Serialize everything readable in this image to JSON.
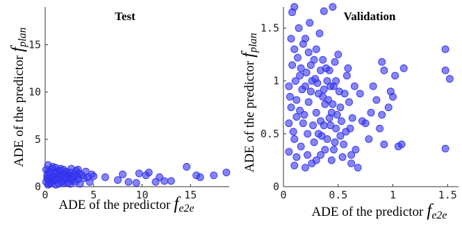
{
  "chart_data": [
    {
      "type": "scatter",
      "title": "Test",
      "xlabel": {
        "text": "ADE of the predictor",
        "symbol": "f",
        "subscript": "e2e"
      },
      "ylabel": {
        "text": "ADE of the predictor",
        "symbol": "f",
        "subscript": "plan"
      },
      "xlim": [
        0,
        19
      ],
      "ylim": [
        0,
        19
      ],
      "xticks": [
        "0",
        "5",
        "10",
        "15"
      ],
      "xtick_values": [
        0,
        5,
        10,
        15
      ],
      "yticks": [
        "0",
        "5",
        "10",
        "15"
      ],
      "ytick_values": [
        0,
        5,
        10,
        15
      ],
      "marker_color": "#3333ee",
      "points": [
        [
          0.1,
          0.5
        ],
        [
          0.2,
          1.2
        ],
        [
          0.3,
          2.3
        ],
        [
          0.1,
          1.8
        ],
        [
          0.4,
          0.9
        ],
        [
          0.5,
          1.5
        ],
        [
          0.6,
          0.4
        ],
        [
          0.7,
          1.9
        ],
        [
          0.8,
          1.1
        ],
        [
          0.9,
          0.6
        ],
        [
          1.0,
          1.4
        ],
        [
          1.1,
          2.0
        ],
        [
          1.2,
          0.8
        ],
        [
          1.3,
          1.2
        ],
        [
          1.4,
          0.3
        ],
        [
          1.5,
          1.7
        ],
        [
          1.6,
          1.0
        ],
        [
          1.7,
          0.5
        ],
        [
          1.8,
          1.3
        ],
        [
          1.9,
          1.8
        ],
        [
          2.0,
          0.7
        ],
        [
          2.1,
          1.1
        ],
        [
          2.2,
          1.6
        ],
        [
          2.3,
          0.4
        ],
        [
          2.4,
          1.2
        ],
        [
          2.5,
          0.9
        ],
        [
          2.6,
          1.5
        ],
        [
          2.7,
          1.9
        ],
        [
          2.8,
          0.6
        ],
        [
          2.9,
          1.0
        ],
        [
          3.0,
          1.3
        ],
        [
          3.1,
          0.5
        ],
        [
          3.2,
          1.7
        ],
        [
          3.3,
          1.1
        ],
        [
          3.4,
          0.8
        ],
        [
          3.5,
          1.4
        ],
        [
          3.6,
          0.3
        ],
        [
          3.8,
          1.2
        ],
        [
          4.0,
          0.9
        ],
        [
          4.2,
          1.6
        ],
        [
          4.4,
          1.0
        ],
        [
          4.6,
          0.5
        ],
        [
          4.8,
          1.3
        ],
        [
          5.0,
          1.1
        ],
        [
          0.3,
          0.2
        ],
        [
          0.6,
          1.0
        ],
        [
          1.0,
          0.7
        ],
        [
          1.5,
          1.2
        ],
        [
          2.0,
          1.4
        ],
        [
          2.5,
          1.2
        ],
        [
          0.2,
          0.9
        ],
        [
          0.5,
          0.3
        ],
        [
          1.2,
          1.6
        ],
        [
          1.9,
          0.4
        ],
        [
          2.6,
          0.3
        ],
        [
          3.4,
          1.8
        ],
        [
          0.8,
          2.1
        ],
        [
          1.6,
          1.9
        ],
        [
          0.4,
          1.6
        ],
        [
          1.1,
          0.2
        ],
        [
          6.2,
          1.0
        ],
        [
          7.5,
          0.7
        ],
        [
          8.0,
          1.3
        ],
        [
          8.6,
          0.5
        ],
        [
          9.4,
          0.4
        ],
        [
          9.7,
          1.4
        ],
        [
          10.4,
          1.2
        ],
        [
          10.7,
          1.5
        ],
        [
          11.4,
          0.5
        ],
        [
          11.8,
          1.0
        ],
        [
          12.3,
          0.6
        ],
        [
          13.0,
          0.6
        ],
        [
          14.6,
          2.1
        ],
        [
          15.6,
          1.2
        ],
        [
          16.0,
          1.0
        ],
        [
          17.4,
          1.2
        ],
        [
          18.7,
          1.5
        ]
      ]
    },
    {
      "type": "scatter",
      "title": "Validation",
      "xlabel": {
        "text": "ADE of the predictor",
        "symbol": "f",
        "subscript": "e2e"
      },
      "ylabel": {
        "text": "ADE of the predictor",
        "symbol": "f",
        "subscript": "plan"
      },
      "xlim": [
        0,
        1.6
      ],
      "ylim": [
        0,
        1.7
      ],
      "xticks": [
        "0",
        "0.5",
        "1",
        "1.5"
      ],
      "xtick_values": [
        0,
        0.5,
        1,
        1.5
      ],
      "yticks": [
        "0",
        "0.5",
        "1",
        "1.5"
      ],
      "ytick_values": [
        0,
        0.5,
        1,
        1.5
      ],
      "marker_color": "#3333ee",
      "points": [
        [
          0.05,
          0.95
        ],
        [
          0.08,
          1.65
        ],
        [
          0.1,
          1.3
        ],
        [
          0.12,
          0.82
        ],
        [
          0.15,
          1.05
        ],
        [
          0.1,
          0.45
        ],
        [
          0.18,
          0.6
        ],
        [
          0.2,
          1.4
        ],
        [
          0.22,
          0.3
        ],
        [
          0.25,
          0.9
        ],
        [
          0.28,
          1.2
        ],
        [
          0.3,
          0.7
        ],
        [
          0.32,
          0.5
        ],
        [
          0.34,
          1.1
        ],
        [
          0.36,
          0.85
        ],
        [
          0.38,
          0.35
        ],
        [
          0.4,
          1.0
        ],
        [
          0.42,
          0.65
        ],
        [
          0.44,
          0.25
        ],
        [
          0.46,
          0.95
        ],
        [
          0.48,
          0.55
        ],
        [
          0.5,
          1.25
        ],
        [
          0.52,
          0.75
        ],
        [
          0.55,
          0.4
        ],
        [
          0.58,
          1.05
        ],
        [
          0.6,
          0.8
        ],
        [
          0.62,
          0.3
        ],
        [
          0.05,
          0.6
        ],
        [
          0.08,
          1.15
        ],
        [
          0.12,
          0.28
        ],
        [
          0.15,
          0.72
        ],
        [
          0.18,
          1.35
        ],
        [
          0.2,
          0.95
        ],
        [
          0.22,
          0.5
        ],
        [
          0.25,
          1.15
        ],
        [
          0.28,
          0.42
        ],
        [
          0.3,
          1.3
        ],
        [
          0.32,
          0.88
        ],
        [
          0.34,
          0.62
        ],
        [
          0.36,
          1.2
        ],
        [
          0.38,
          0.78
        ],
        [
          0.4,
          0.45
        ],
        [
          0.42,
          1.1
        ],
        [
          0.44,
          0.7
        ],
        [
          0.46,
          0.35
        ],
        [
          0.48,
          1.0
        ],
        [
          0.1,
          0.2
        ],
        [
          0.14,
          1.5
        ],
        [
          0.16,
          0.38
        ],
        [
          0.24,
          1.55
        ],
        [
          0.26,
          0.22
        ],
        [
          0.33,
          1.45
        ],
        [
          0.06,
          0.85
        ],
        [
          0.09,
          0.52
        ],
        [
          0.11,
          1.0
        ],
        [
          0.13,
          1.22
        ],
        [
          0.17,
          0.92
        ],
        [
          0.19,
          0.68
        ],
        [
          0.21,
          1.08
        ],
        [
          0.23,
          0.8
        ],
        [
          0.27,
          0.58
        ],
        [
          0.29,
          1.02
        ],
        [
          0.31,
          0.98
        ],
        [
          0.35,
          0.48
        ],
        [
          0.37,
          0.92
        ],
        [
          0.39,
          1.12
        ],
        [
          0.41,
          0.82
        ],
        [
          0.43,
          0.58
        ],
        [
          0.45,
          0.78
        ],
        [
          0.47,
          1.18
        ],
        [
          0.49,
          0.68
        ],
        [
          0.51,
          0.9
        ],
        [
          0.53,
          0.62
        ],
        [
          0.56,
          0.88
        ],
        [
          0.59,
          1.12
        ],
        [
          0.63,
          0.65
        ],
        [
          0.65,
          0.95
        ],
        [
          0.05,
          0.33
        ],
        [
          0.07,
          0.75
        ],
        [
          0.07,
          1.4
        ],
        [
          0.12,
          0.66
        ],
        [
          0.16,
          1.12
        ],
        [
          0.2,
          0.18
        ],
        [
          0.23,
          1.27
        ],
        [
          0.26,
          1.0
        ],
        [
          0.3,
          0.25
        ],
        [
          0.34,
          0.3
        ],
        [
          0.37,
          0.58
        ],
        [
          0.43,
          0.95
        ],
        [
          0.47,
          0.42
        ],
        [
          0.52,
          0.48
        ],
        [
          0.57,
          0.52
        ],
        [
          0.61,
          0.55
        ],
        [
          0.54,
          0.28
        ],
        [
          0.66,
          0.35
        ],
        [
          0.62,
          0.22
        ],
        [
          0.68,
          0.18
        ],
        [
          0.1,
          1.7
        ],
        [
          0.37,
          1.66
        ],
        [
          0.45,
          1.7
        ],
        [
          0.7,
          0.88
        ],
        [
          0.72,
          0.62
        ],
        [
          0.75,
          0.6
        ],
        [
          0.78,
          0.45
        ],
        [
          0.8,
          0.7
        ],
        [
          0.82,
          0.95
        ],
        [
          0.85,
          0.82
        ],
        [
          0.88,
          0.55
        ],
        [
          0.9,
          0.68
        ],
        [
          0.92,
          0.4
        ],
        [
          0.96,
          0.75
        ],
        [
          0.98,
          0.9
        ],
        [
          1.0,
          0.85
        ],
        [
          1.02,
          1.05
        ],
        [
          1.05,
          0.38
        ],
        [
          1.08,
          0.4
        ],
        [
          1.1,
          1.12
        ],
        [
          0.9,
          1.18
        ],
        [
          0.92,
          1.1
        ],
        [
          1.48,
          1.3
        ],
        [
          1.48,
          1.1
        ],
        [
          1.52,
          1.02
        ],
        [
          1.48,
          0.36
        ]
      ]
    }
  ]
}
